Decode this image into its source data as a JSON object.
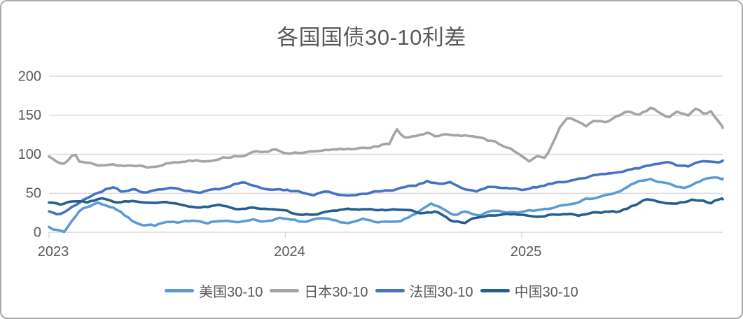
{
  "chart_data": {
    "type": "line",
    "title": "各国国债30-10利差",
    "x_ticks": [
      {
        "label": "2023",
        "value": 2023
      },
      {
        "label": "2024",
        "value": 2024
      },
      {
        "label": "2025",
        "value": 2025
      }
    ],
    "y_ticks": [
      0,
      50,
      100,
      150,
      200
    ],
    "ylim": [
      0,
      200
    ],
    "xlim": [
      2023.0,
      2025.85
    ],
    "grid": true,
    "legend_position": "bottom",
    "text_color": "#595959",
    "grid_color": "#d9d9d9",
    "series": [
      {
        "name": "美国30-10",
        "color": "#5B9BD5",
        "noise_amp": 2.4,
        "noise_seed": 7,
        "anchors": [
          [
            2023.0,
            8
          ],
          [
            2023.03,
            3
          ],
          [
            2023.065,
            0
          ],
          [
            2023.09,
            12
          ],
          [
            2023.13,
            28
          ],
          [
            2023.17,
            34
          ],
          [
            2023.21,
            38
          ],
          [
            2023.25,
            34
          ],
          [
            2023.28,
            31
          ],
          [
            2023.31,
            24
          ],
          [
            2023.35,
            15
          ],
          [
            2023.4,
            10
          ],
          [
            2023.45,
            9
          ],
          [
            2023.5,
            13
          ],
          [
            2023.55,
            11
          ],
          [
            2023.61,
            16
          ],
          [
            2023.67,
            13
          ],
          [
            2023.73,
            15
          ],
          [
            2023.79,
            12
          ],
          [
            2023.85,
            17
          ],
          [
            2023.91,
            14
          ],
          [
            2023.97,
            18
          ],
          [
            2024.03,
            15
          ],
          [
            2024.09,
            13
          ],
          [
            2024.15,
            17
          ],
          [
            2024.21,
            14
          ],
          [
            2024.27,
            12
          ],
          [
            2024.33,
            16
          ],
          [
            2024.39,
            12
          ],
          [
            2024.45,
            14
          ],
          [
            2024.52,
            18
          ],
          [
            2024.58,
            30
          ],
          [
            2024.62,
            36
          ],
          [
            2024.66,
            30
          ],
          [
            2024.71,
            21
          ],
          [
            2024.76,
            26
          ],
          [
            2024.82,
            22
          ],
          [
            2024.88,
            27
          ],
          [
            2024.94,
            24
          ],
          [
            2025.0,
            26
          ],
          [
            2025.06,
            28
          ],
          [
            2025.12,
            31
          ],
          [
            2025.18,
            36
          ],
          [
            2025.24,
            40
          ],
          [
            2025.3,
            44
          ],
          [
            2025.36,
            48
          ],
          [
            2025.42,
            52
          ],
          [
            2025.46,
            60
          ],
          [
            2025.5,
            66
          ],
          [
            2025.55,
            68
          ],
          [
            2025.6,
            63
          ],
          [
            2025.64,
            60
          ],
          [
            2025.68,
            56
          ],
          [
            2025.73,
            62
          ],
          [
            2025.78,
            68
          ],
          [
            2025.82,
            71
          ],
          [
            2025.85,
            68
          ]
        ]
      },
      {
        "name": "日本30-10",
        "color": "#A5A5A5",
        "noise_amp": 2.6,
        "noise_seed": 13,
        "anchors": [
          [
            2023.0,
            97
          ],
          [
            2023.03,
            92
          ],
          [
            2023.06,
            89
          ],
          [
            2023.09,
            97
          ],
          [
            2023.105,
            105
          ],
          [
            2023.13,
            90
          ],
          [
            2023.17,
            88
          ],
          [
            2023.22,
            86
          ],
          [
            2023.27,
            87
          ],
          [
            2023.32,
            85
          ],
          [
            2023.37,
            86
          ],
          [
            2023.42,
            84
          ],
          [
            2023.47,
            87
          ],
          [
            2023.52,
            89
          ],
          [
            2023.57,
            91
          ],
          [
            2023.62,
            93
          ],
          [
            2023.67,
            92
          ],
          [
            2023.72,
            95
          ],
          [
            2023.77,
            97
          ],
          [
            2023.82,
            99
          ],
          [
            2023.87,
            102
          ],
          [
            2023.92,
            104
          ],
          [
            2023.96,
            107
          ],
          [
            2024.02,
            100
          ],
          [
            2024.08,
            102
          ],
          [
            2024.14,
            103
          ],
          [
            2024.2,
            105
          ],
          [
            2024.28,
            107
          ],
          [
            2024.37,
            110
          ],
          [
            2024.44,
            113
          ],
          [
            2024.47,
            131
          ],
          [
            2024.5,
            122
          ],
          [
            2024.55,
            124
          ],
          [
            2024.6,
            128
          ],
          [
            2024.64,
            122
          ],
          [
            2024.7,
            126
          ],
          [
            2024.76,
            124
          ],
          [
            2024.82,
            120
          ],
          [
            2024.88,
            116
          ],
          [
            2024.94,
            110
          ],
          [
            2025.0,
            99
          ],
          [
            2025.03,
            92
          ],
          [
            2025.06,
            97
          ],
          [
            2025.1,
            93
          ],
          [
            2025.13,
            112
          ],
          [
            2025.16,
            135
          ],
          [
            2025.2,
            148
          ],
          [
            2025.23,
            143
          ],
          [
            2025.27,
            136
          ],
          [
            2025.31,
            143
          ],
          [
            2025.35,
            140
          ],
          [
            2025.4,
            148
          ],
          [
            2025.45,
            155
          ],
          [
            2025.5,
            150
          ],
          [
            2025.55,
            160
          ],
          [
            2025.58,
            152
          ],
          [
            2025.62,
            148
          ],
          [
            2025.66,
            155
          ],
          [
            2025.7,
            150
          ],
          [
            2025.74,
            158
          ],
          [
            2025.77,
            152
          ],
          [
            2025.8,
            155
          ],
          [
            2025.82,
            145
          ],
          [
            2025.85,
            134
          ]
        ]
      },
      {
        "name": "法国30-10",
        "color": "#4472C4",
        "noise_amp": 2.2,
        "noise_seed": 21,
        "anchors": [
          [
            2023.0,
            27
          ],
          [
            2023.04,
            23
          ],
          [
            2023.08,
            28
          ],
          [
            2023.12,
            36
          ],
          [
            2023.16,
            44
          ],
          [
            2023.2,
            50
          ],
          [
            2023.24,
            55
          ],
          [
            2023.27,
            58
          ],
          [
            2023.31,
            52
          ],
          [
            2023.36,
            56
          ],
          [
            2023.41,
            50
          ],
          [
            2023.46,
            54
          ],
          [
            2023.52,
            58
          ],
          [
            2023.58,
            53
          ],
          [
            2023.63,
            50
          ],
          [
            2023.68,
            53
          ],
          [
            2023.73,
            56
          ],
          [
            2023.78,
            62
          ],
          [
            2023.83,
            64
          ],
          [
            2023.88,
            58
          ],
          [
            2023.94,
            56
          ],
          [
            2024.0,
            54
          ],
          [
            2024.06,
            51
          ],
          [
            2024.12,
            49
          ],
          [
            2024.18,
            52
          ],
          [
            2024.25,
            47
          ],
          [
            2024.31,
            49
          ],
          [
            2024.38,
            52
          ],
          [
            2024.45,
            54
          ],
          [
            2024.5,
            57
          ],
          [
            2024.55,
            60
          ],
          [
            2024.6,
            66
          ],
          [
            2024.65,
            62
          ],
          [
            2024.7,
            64
          ],
          [
            2024.75,
            56
          ],
          [
            2024.8,
            52
          ],
          [
            2024.86,
            58
          ],
          [
            2024.92,
            56
          ],
          [
            2025.0,
            55
          ],
          [
            2025.05,
            58
          ],
          [
            2025.1,
            60
          ],
          [
            2025.15,
            64
          ],
          [
            2025.2,
            66
          ],
          [
            2025.25,
            70
          ],
          [
            2025.3,
            72
          ],
          [
            2025.35,
            74
          ],
          [
            2025.4,
            77
          ],
          [
            2025.45,
            80
          ],
          [
            2025.5,
            83
          ],
          [
            2025.55,
            86
          ],
          [
            2025.6,
            88
          ],
          [
            2025.63,
            90
          ],
          [
            2025.66,
            85
          ],
          [
            2025.7,
            84
          ],
          [
            2025.74,
            89
          ],
          [
            2025.78,
            91
          ],
          [
            2025.82,
            89
          ],
          [
            2025.85,
            91
          ]
        ]
      },
      {
        "name": "中国30-10",
        "color": "#255E91",
        "noise_amp": 1.8,
        "noise_seed": 33,
        "anchors": [
          [
            2023.0,
            38
          ],
          [
            2023.05,
            36
          ],
          [
            2023.1,
            40
          ],
          [
            2023.16,
            38
          ],
          [
            2023.22,
            43
          ],
          [
            2023.28,
            39
          ],
          [
            2023.35,
            40
          ],
          [
            2023.42,
            37
          ],
          [
            2023.5,
            38
          ],
          [
            2023.57,
            34
          ],
          [
            2023.64,
            32
          ],
          [
            2023.72,
            34
          ],
          [
            2023.79,
            30
          ],
          [
            2023.86,
            32
          ],
          [
            2023.93,
            29
          ],
          [
            2024.0,
            27
          ],
          [
            2024.07,
            21
          ],
          [
            2024.13,
            24
          ],
          [
            2024.2,
            27
          ],
          [
            2024.27,
            29
          ],
          [
            2024.33,
            30
          ],
          [
            2024.4,
            28
          ],
          [
            2024.47,
            30
          ],
          [
            2024.53,
            27
          ],
          [
            2024.58,
            24
          ],
          [
            2024.64,
            26
          ],
          [
            2024.7,
            15
          ],
          [
            2024.76,
            13
          ],
          [
            2024.82,
            20
          ],
          [
            2024.88,
            22
          ],
          [
            2024.94,
            23
          ],
          [
            2025.0,
            22
          ],
          [
            2025.06,
            20
          ],
          [
            2025.12,
            22
          ],
          [
            2025.18,
            24
          ],
          [
            2025.24,
            22
          ],
          [
            2025.3,
            25
          ],
          [
            2025.35,
            26
          ],
          [
            2025.4,
            26
          ],
          [
            2025.45,
            31
          ],
          [
            2025.5,
            38
          ],
          [
            2025.53,
            43
          ],
          [
            2025.56,
            41
          ],
          [
            2025.6,
            38
          ],
          [
            2025.64,
            36
          ],
          [
            2025.68,
            38
          ],
          [
            2025.72,
            42
          ],
          [
            2025.76,
            40
          ],
          [
            2025.8,
            38
          ],
          [
            2025.83,
            42
          ],
          [
            2025.85,
            43
          ]
        ]
      }
    ]
  }
}
